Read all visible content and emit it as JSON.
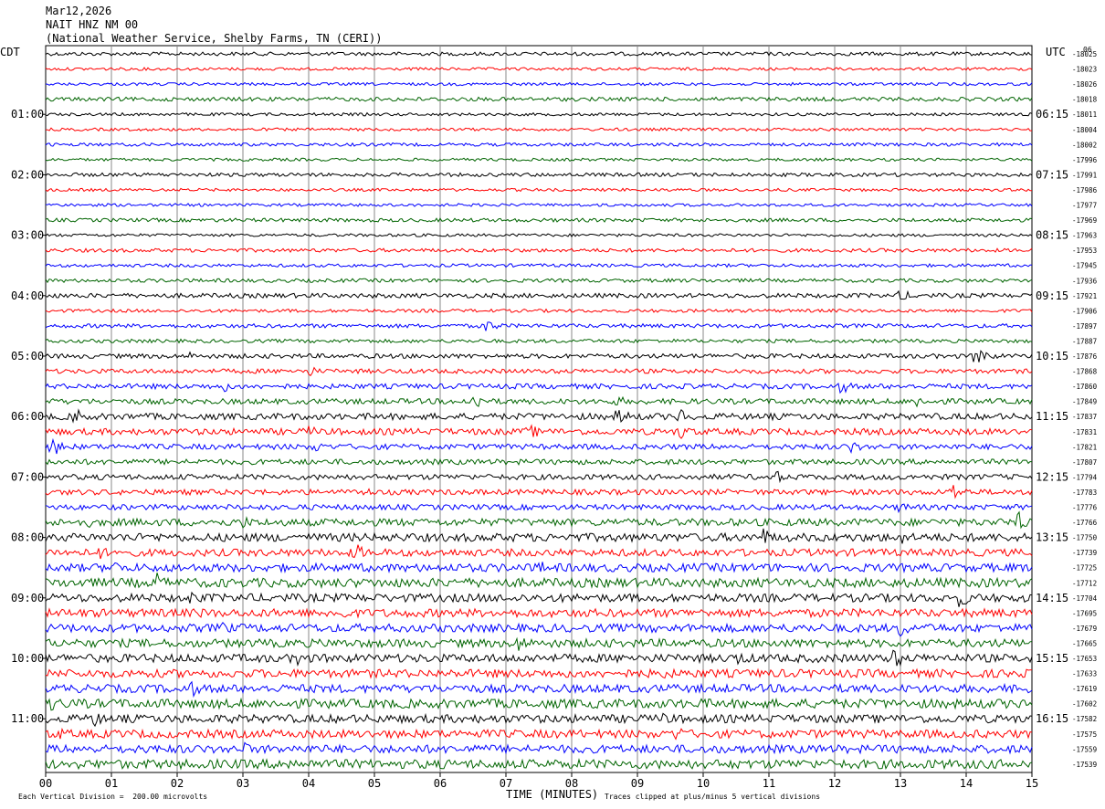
{
  "header": {
    "date": "Mar12,2026",
    "station": "NAIT HNZ NM 00",
    "network": "(National Weather Service, Shelby Farms, TN (CERI))"
  },
  "left_axis_label": "CDT",
  "right_axis_label": "UTC",
  "corner_label": "06",
  "chart_data": {
    "type": "line",
    "chart_kind": "helicorder seismogram",
    "xlabel": "TIME (MINUTES)",
    "x_range": [
      0,
      15
    ],
    "x_ticks": [
      "00",
      "01",
      "02",
      "03",
      "04",
      "05",
      "06",
      "07",
      "08",
      "09",
      "10",
      "11",
      "12",
      "13",
      "14",
      "15"
    ],
    "grid": "vertical lines every minute",
    "trace_colors": [
      "#000000",
      "#ff0000",
      "#0000ff",
      "#006400"
    ],
    "lines_per_hour": 4,
    "minutes_per_line": 15,
    "cdt_hour_labels": [
      "01:00",
      "02:00",
      "03:00",
      "04:00",
      "05:00",
      "06:00",
      "07:00",
      "08:00",
      "09:00",
      "10:00",
      "11:00"
    ],
    "utc_labels": [
      "06:15",
      "07:15",
      "08:15",
      "09:15",
      "10:15",
      "11:15",
      "12:15",
      "13:15",
      "14:15",
      "15:15",
      "16:15"
    ],
    "trace_offsets": [
      "-18025",
      "-18023",
      "-18026",
      "-18018",
      "-18011",
      "-18004",
      "-18002",
      "-17996",
      "-17991",
      "-17986",
      "-17977",
      "-17969",
      "-17963",
      "-17953",
      "-17945",
      "-17936",
      "-17921",
      "-17906",
      "-17897",
      "-17887",
      "-17876",
      "-17868",
      "-17860",
      "-17849",
      "-17837",
      "-17831",
      "-17821",
      "-17807",
      "-17794",
      "-17783",
      "-17776",
      "-17766",
      "-17750",
      "-17739",
      "-17725",
      "-17712",
      "-17704",
      "-17695",
      "-17679",
      "-17665",
      "-17653",
      "-17633",
      "-17619",
      "-17602",
      "-17582",
      "-17575",
      "-17559",
      "-17539"
    ],
    "trace_amplitude": [
      2,
      1.6,
      1.6,
      2.2,
      1.6,
      1.6,
      1.8,
      1.6,
      2,
      1.6,
      1.6,
      2,
      1.6,
      2,
      1.8,
      2,
      2.5,
      1.8,
      2.2,
      2,
      2.5,
      2.5,
      2.8,
      3,
      3.5,
      3.5,
      3,
      3,
      3,
      3,
      3,
      4,
      4.5,
      4,
      4.5,
      5,
      4.5,
      4.5,
      4.5,
      4.5,
      4.5,
      4.5,
      4.5,
      5,
      4.5,
      4.5,
      4.5,
      5
    ],
    "events": [
      {
        "trace": 16,
        "minute": 13.0,
        "amp": 8
      },
      {
        "trace": 18,
        "minute": 6.7,
        "amp": 9
      },
      {
        "trace": 20,
        "minute": 14.15,
        "amp": 14
      },
      {
        "trace": 20,
        "minute": 2.2,
        "amp": 5
      },
      {
        "trace": 21,
        "minute": 4.0,
        "amp": 7
      },
      {
        "trace": 22,
        "minute": 2.7,
        "amp": 7
      },
      {
        "trace": 22,
        "minute": 12.1,
        "amp": 9
      },
      {
        "trace": 23,
        "minute": 6.5,
        "amp": 12
      },
      {
        "trace": 23,
        "minute": 8.7,
        "amp": 7
      },
      {
        "trace": 23,
        "minute": 13.25,
        "amp": 8
      },
      {
        "trace": 24,
        "minute": 0.45,
        "amp": 11
      },
      {
        "trace": 24,
        "minute": 6.0,
        "amp": 6
      },
      {
        "trace": 24,
        "minute": 8.7,
        "amp": 12
      },
      {
        "trace": 24,
        "minute": 9.65,
        "amp": 10
      },
      {
        "trace": 25,
        "minute": 4.0,
        "amp": 8
      },
      {
        "trace": 25,
        "minute": 7.35,
        "amp": 10
      },
      {
        "trace": 25,
        "minute": 9.65,
        "amp": 10
      },
      {
        "trace": 26,
        "minute": 0.1,
        "amp": 12
      },
      {
        "trace": 26,
        "minute": 4.1,
        "amp": 8
      },
      {
        "trace": 26,
        "minute": 12.25,
        "amp": 8
      },
      {
        "trace": 28,
        "minute": 11.1,
        "amp": 8
      },
      {
        "trace": 29,
        "minute": 13.8,
        "amp": 12
      },
      {
        "trace": 29,
        "minute": 4.8,
        "amp": 8
      },
      {
        "trace": 30,
        "minute": 13.0,
        "amp": 8
      },
      {
        "trace": 31,
        "minute": 14.8,
        "amp": 12
      },
      {
        "trace": 31,
        "minute": 0.6,
        "amp": 8
      },
      {
        "trace": 31,
        "minute": 3.0,
        "amp": 8
      },
      {
        "trace": 32,
        "minute": 10.9,
        "amp": 12
      },
      {
        "trace": 32,
        "minute": 13.0,
        "amp": 9
      },
      {
        "trace": 33,
        "minute": 4.7,
        "amp": 12
      },
      {
        "trace": 33,
        "minute": 0.8,
        "amp": 9
      },
      {
        "trace": 34,
        "minute": 1.0,
        "amp": 10
      },
      {
        "trace": 34,
        "minute": 7.5,
        "amp": 9
      },
      {
        "trace": 35,
        "minute": 1.7,
        "amp": 12
      },
      {
        "trace": 36,
        "minute": 13.9,
        "amp": 12
      },
      {
        "trace": 36,
        "minute": 2.2,
        "amp": 9
      },
      {
        "trace": 37,
        "minute": 4.5,
        "amp": 9
      },
      {
        "trace": 37,
        "minute": 2.3,
        "amp": 9
      },
      {
        "trace": 38,
        "minute": 13.0,
        "amp": 11
      },
      {
        "trace": 38,
        "minute": 2.7,
        "amp": 9
      },
      {
        "trace": 39,
        "minute": 7.2,
        "amp": 12
      },
      {
        "trace": 40,
        "minute": 3.85,
        "amp": 12
      },
      {
        "trace": 40,
        "minute": 10.5,
        "amp": 11
      },
      {
        "trace": 40,
        "minute": 12.9,
        "amp": 13
      },
      {
        "trace": 41,
        "minute": 9.35,
        "amp": 9
      },
      {
        "trace": 42,
        "minute": 2.2,
        "amp": 11
      },
      {
        "trace": 42,
        "minute": 14.8,
        "amp": 13
      },
      {
        "trace": 43,
        "minute": 0.1,
        "amp": 11
      },
      {
        "trace": 43,
        "minute": 9.95,
        "amp": 8
      },
      {
        "trace": 44,
        "minute": 0.7,
        "amp": 12
      },
      {
        "trace": 44,
        "minute": 9.4,
        "amp": 8
      },
      {
        "trace": 45,
        "minute": 9.6,
        "amp": 10
      },
      {
        "trace": 45,
        "minute": 0.2,
        "amp": 8
      },
      {
        "trace": 46,
        "minute": 3.0,
        "amp": 9
      },
      {
        "trace": 47,
        "minute": 3.7,
        "amp": 10
      }
    ],
    "footer_left": "Each Vertical Division =  200.00 microvolts",
    "footer_right": "Traces clipped at plus/minus 5 vertical divisions"
  }
}
